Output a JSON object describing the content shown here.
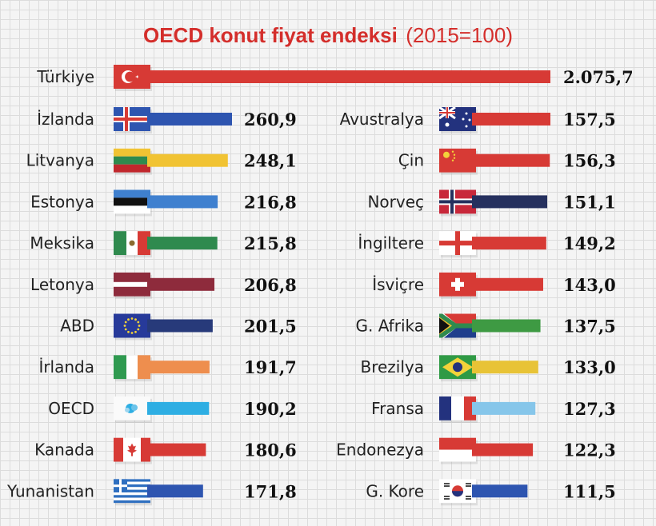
{
  "chart_data": {
    "type": "bar",
    "title": "OECD konut fiyat endeksi",
    "subtitle": "(2015=100)",
    "title_color": "#d42e2b",
    "top": {
      "name": "Türkiye",
      "value": 2075.7,
      "label": "2.075,7",
      "color": "#d73a35",
      "flag": "turkey-flag"
    },
    "left_column": [
      {
        "name": "İzlanda",
        "value": 260.9,
        "label": "260,9",
        "color": "#2e55b0",
        "flag": "iceland-flag"
      },
      {
        "name": "Litvanya",
        "value": 248.1,
        "label": "248,1",
        "color": "#f1c333",
        "flag": "lithuania-flag"
      },
      {
        "name": "Estonya",
        "value": 216.8,
        "label": "216,8",
        "color": "#3f80cf",
        "flag": "estonia-flag"
      },
      {
        "name": "Meksika",
        "value": 215.8,
        "label": "215,8",
        "color": "#2f8a4e",
        "flag": "mexico-flag"
      },
      {
        "name": "Letonya",
        "value": 206.8,
        "label": "206,8",
        "color": "#8e2b3c",
        "flag": "latvia-flag"
      },
      {
        "name": "ABD",
        "value": 201.5,
        "label": "201,5",
        "color": "#273a7a",
        "flag": "eu-flag"
      },
      {
        "name": "İrlanda",
        "value": 191.7,
        "label": "191,7",
        "color": "#ee8e4e",
        "flag": "ireland-flag"
      },
      {
        "name": "OECD",
        "value": 190.2,
        "label": "190,2",
        "color": "#2eaee3",
        "flag": "oecd-flag"
      },
      {
        "name": "Kanada",
        "value": 180.6,
        "label": "180,6",
        "color": "#d73a35",
        "flag": "canada-flag"
      },
      {
        "name": "Yunanistan",
        "value": 171.8,
        "label": "171,8",
        "color": "#2e55b0",
        "flag": "greece-flag"
      }
    ],
    "right_column": [
      {
        "name": "Avustralya",
        "value": 157.5,
        "label": "157,5",
        "color": "#d73a35",
        "flag": "australia-flag"
      },
      {
        "name": "Çin",
        "value": 156.3,
        "label": "156,3",
        "color": "#d73a35",
        "flag": "china-flag"
      },
      {
        "name": "Norveç",
        "value": 151.1,
        "label": "151,1",
        "color": "#25305e",
        "flag": "norway-flag"
      },
      {
        "name": "İngiltere",
        "value": 149.2,
        "label": "149,2",
        "color": "#d73a35",
        "flag": "england-flag"
      },
      {
        "name": "İsviçre",
        "value": 143.0,
        "label": "143,0",
        "color": "#d73a35",
        "flag": "switzerland-flag"
      },
      {
        "name": "G. Afrika",
        "value": 137.5,
        "label": "137,5",
        "color": "#3e9a43",
        "flag": "south-africa-flag"
      },
      {
        "name": "Brezilya",
        "value": 133.0,
        "label": "133,0",
        "color": "#e8c336",
        "flag": "brazil-flag"
      },
      {
        "name": "Fransa",
        "value": 127.3,
        "label": "127,3",
        "color": "#86c6ea",
        "flag": "france-flag"
      },
      {
        "name": "Endonezya",
        "value": 122.3,
        "label": "122,3",
        "color": "#d73a35",
        "flag": "indonesia-flag"
      },
      {
        "name": "G. Kore",
        "value": 111.5,
        "label": "111,5",
        "color": "#2e55b0",
        "flag": "south-korea-flag"
      }
    ]
  }
}
